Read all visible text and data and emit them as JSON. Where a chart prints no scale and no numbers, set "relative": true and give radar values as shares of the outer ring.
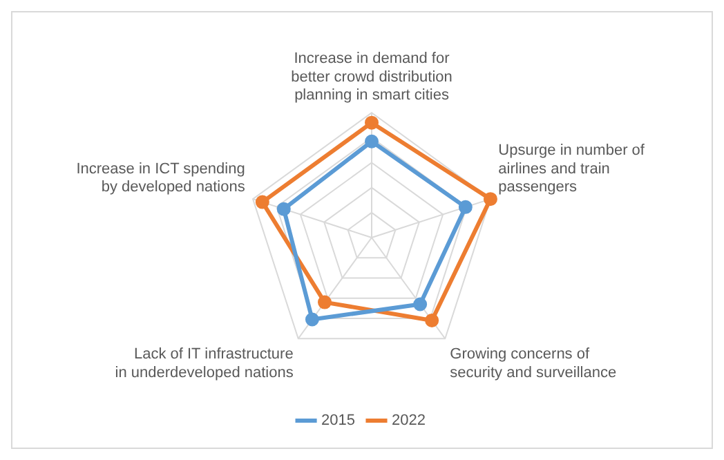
{
  "chart_data": {
    "type": "radar",
    "relative": true,
    "categories": [
      "Increase in demand for better crowd distribution planning in smart cities",
      "Upsurge in number of airlines and train passengers",
      "Growing concerns of security and surveillance",
      "Lack of IT infrastructure in underdeveloped nations",
      "Increase in ICT spending by developed nations"
    ],
    "series": [
      {
        "name": "2015",
        "color": "#5b9bd5",
        "values": [
          0.77,
          0.79,
          0.66,
          0.81,
          0.74
        ]
      },
      {
        "name": "2022",
        "color": "#ed7d31",
        "values": [
          0.92,
          1.0,
          0.82,
          0.64,
          0.92
        ]
      }
    ],
    "grid": true,
    "legend": "bottom",
    "marker": "circle"
  }
}
